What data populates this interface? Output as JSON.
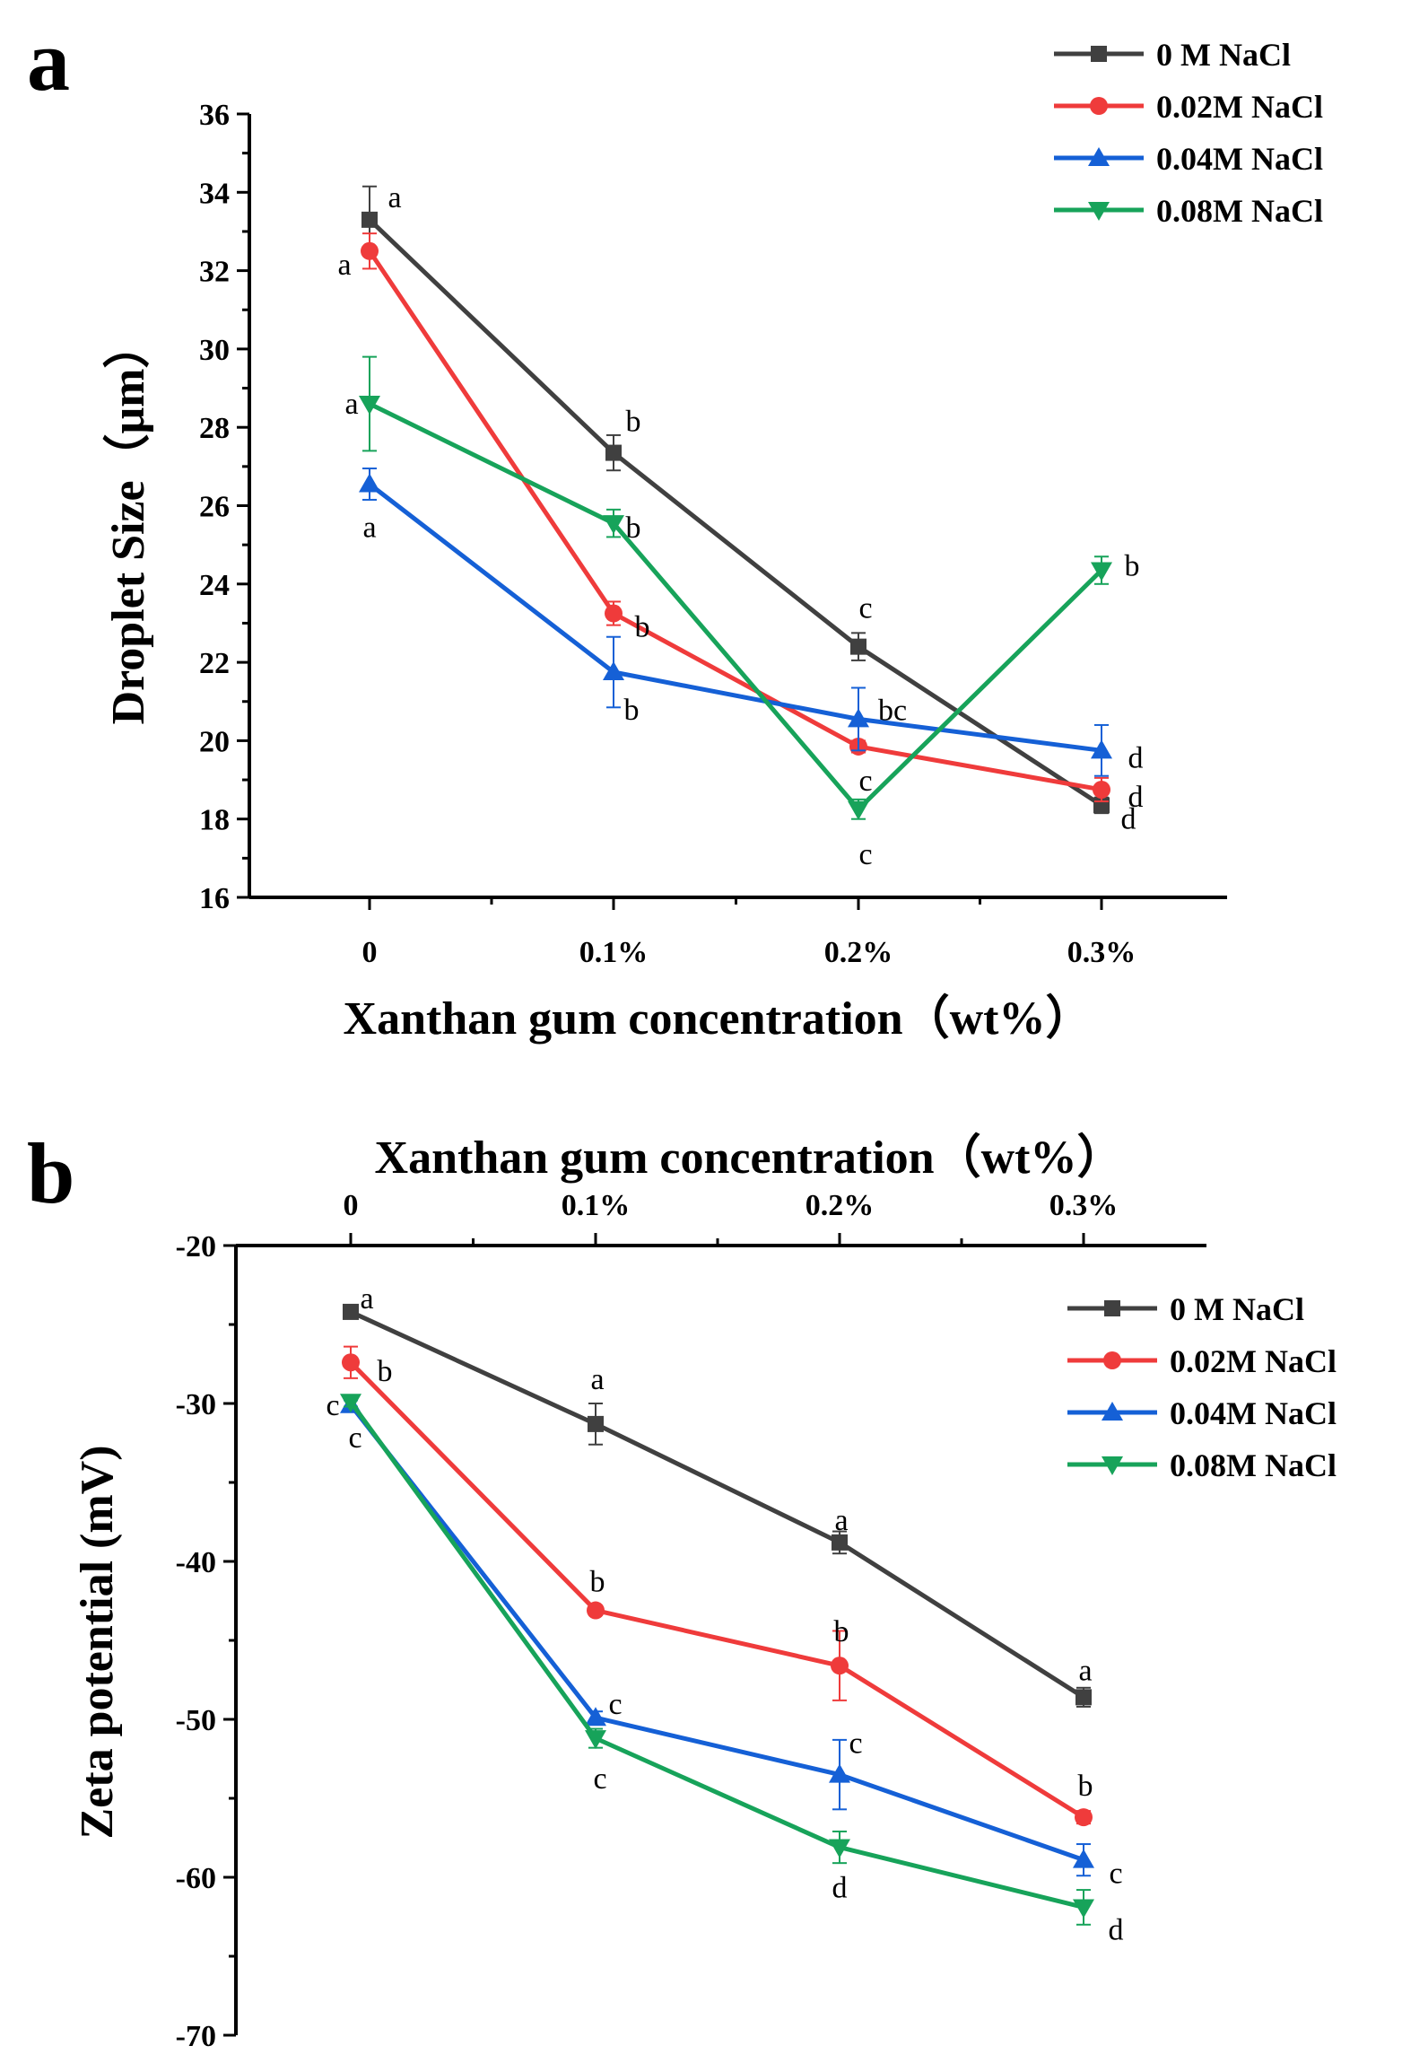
{
  "colors": {
    "0M": "#404040",
    "0.02M": "#ef3b3b",
    "0.04M": "#1560d6",
    "0.08M": "#17a35a"
  },
  "chart_data": [
    {
      "panel": "a",
      "type": "line",
      "xlabel": "Xanthan gum concentration（wt%）",
      "ylabel": "Droplet Size（μm）",
      "categories": [
        "0",
        "0.1%",
        "0.2%",
        "0.3%"
      ],
      "ylim": [
        16,
        36
      ],
      "yticks": [
        16,
        18,
        20,
        22,
        24,
        26,
        28,
        30,
        32,
        34,
        36
      ],
      "legend_position": "top-right",
      "series": [
        {
          "name": "0    M  NaCl",
          "key": "0M",
          "marker": "square",
          "values": [
            33.3,
            27.35,
            22.4,
            18.35
          ],
          "errors": [
            0.85,
            0.45,
            0.35,
            0.2
          ],
          "letters": [
            "a",
            "b",
            "c",
            "d"
          ]
        },
        {
          "name": "0.02M NaCl",
          "key": "0.02M",
          "marker": "circle",
          "values": [
            32.5,
            23.25,
            19.85,
            18.75
          ],
          "errors": [
            0.45,
            0.3,
            0.15,
            0.3
          ],
          "letters": [
            "a",
            "b",
            "c",
            "d"
          ]
        },
        {
          "name": "0.04M NaCl",
          "key": "0.04M",
          "marker": "triangle-up",
          "values": [
            26.55,
            21.75,
            20.55,
            19.75
          ],
          "errors": [
            0.4,
            0.9,
            0.8,
            0.65
          ],
          "letters": [
            "a",
            "b",
            "bc",
            "d"
          ]
        },
        {
          "name": "0.08M NaCl",
          "key": "0.08M",
          "marker": "triangle-down",
          "values": [
            28.6,
            25.55,
            18.25,
            24.35
          ],
          "errors": [
            1.2,
            0.35,
            0.25,
            0.35
          ],
          "letters": [
            "a",
            "b",
            "c",
            "b"
          ]
        }
      ]
    },
    {
      "panel": "b",
      "type": "line",
      "xlabel": "Xanthan gum concentration（wt%）",
      "ylabel": "Zeta potential (mV)",
      "categories": [
        "0",
        "0.1%",
        "0.2%",
        "0.3%"
      ],
      "ylim": [
        -70,
        -20
      ],
      "yticks": [
        -20,
        -30,
        -40,
        -50,
        -60,
        -70
      ],
      "legend_position": "right",
      "series": [
        {
          "name": "0     M NaCl",
          "key": "0M",
          "marker": "square",
          "values": [
            -24.2,
            -31.3,
            -38.8,
            -48.6
          ],
          "errors": [
            0.4,
            1.3,
            0.7,
            0.6
          ],
          "letters": [
            "a",
            "a",
            "a",
            "a"
          ]
        },
        {
          "name": "0.02M NaCl",
          "key": "0.02M",
          "marker": "circle",
          "values": [
            -27.4,
            -43.1,
            -46.6,
            -56.2
          ],
          "errors": [
            1.0,
            0.3,
            2.2,
            0.4
          ],
          "letters": [
            "b",
            "b",
            "b",
            "b"
          ]
        },
        {
          "name": "0.04M NaCl",
          "key": "0.04M",
          "marker": "triangle-up",
          "values": [
            -30.1,
            -49.9,
            -53.5,
            -58.9
          ],
          "errors": [
            0.3,
            0.4,
            2.2,
            1.0
          ],
          "letters": [
            "c",
            "c",
            "c",
            "c"
          ]
        },
        {
          "name": "0.08M NaCl",
          "key": "0.08M",
          "marker": "triangle-down",
          "values": [
            -29.9,
            -51.2,
            -58.1,
            -61.9
          ],
          "errors": [
            0.3,
            0.6,
            1.0,
            1.1
          ],
          "letters": [
            "c",
            "c",
            "d",
            "d"
          ]
        }
      ]
    }
  ],
  "panels": {
    "a": "a",
    "b": "b"
  }
}
